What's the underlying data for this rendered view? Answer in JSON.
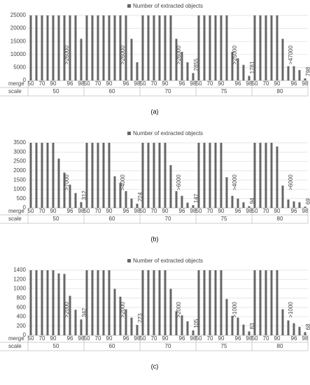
{
  "chart_data": [
    {
      "type": "bar",
      "legend": "Number of extracted objects",
      "caption": "(a)",
      "x_label": "merge",
      "group_label": "scale",
      "color": "#666666",
      "ylim": [
        0,
        25000
      ],
      "yticks": [
        0,
        5000,
        10000,
        15000,
        20000,
        25000
      ],
      "grid": true,
      "categories": [
        "50",
        null,
        "70",
        null,
        "90",
        null,
        null,
        "96",
        null,
        "98"
      ],
      "groups": [
        {
          "name": "50",
          "annotation": ">26000",
          "values": [
            25000,
            25000,
            25000,
            25000,
            25000,
            25000,
            25000,
            25000,
            25000,
            16000
          ],
          "value_labels": [
            null,
            null,
            null,
            null,
            null,
            null,
            null,
            null,
            null,
            null
          ]
        },
        {
          "name": "60",
          "annotation": ">26000",
          "values": [
            25000,
            25000,
            25000,
            25000,
            25000,
            25000,
            25000,
            25000,
            16000,
            7000
          ],
          "value_labels": [
            null,
            null,
            null,
            null,
            null,
            null,
            null,
            null,
            null,
            null
          ]
        },
        {
          "name": "70",
          "annotation": ">26000",
          "values": [
            25000,
            25000,
            25000,
            25000,
            25000,
            25000,
            16000,
            11000,
            7000,
            2855
          ],
          "value_labels": [
            null,
            null,
            null,
            null,
            null,
            null,
            null,
            null,
            null,
            "2855"
          ]
        },
        {
          "name": "75",
          "annotation": ">25000",
          "values": [
            25000,
            25000,
            25000,
            25000,
            25000,
            25000,
            11000,
            8500,
            6000,
            1781
          ],
          "value_labels": [
            null,
            null,
            null,
            null,
            null,
            null,
            null,
            null,
            null,
            "1781"
          ]
        },
        {
          "name": "80",
          "annotation": ">47000",
          "values": [
            25000,
            25000,
            25000,
            25000,
            25000,
            16000,
            5500,
            5500,
            4000,
            798
          ],
          "value_labels": [
            null,
            null,
            null,
            null,
            null,
            null,
            null,
            null,
            null,
            "798"
          ]
        }
      ]
    },
    {
      "type": "bar",
      "legend": "Number of extracted objects",
      "caption": "(b)",
      "x_label": "merge",
      "group_label": "scale",
      "color": "#666666",
      "ylim": [
        0,
        3500
      ],
      "yticks": [
        0,
        500,
        1000,
        1500,
        2000,
        2500,
        3000,
        3500
      ],
      "grid": true,
      "categories": [
        "50",
        null,
        "70",
        null,
        "90",
        null,
        null,
        "96",
        null,
        "98"
      ],
      "groups": [
        {
          "name": "50",
          "annotation": ">7000",
          "values": [
            3500,
            3500,
            3500,
            3500,
            3500,
            2650,
            1900,
            1250,
            800,
            312
          ],
          "value_labels": [
            null,
            null,
            null,
            null,
            null,
            null,
            null,
            null,
            null,
            "312"
          ]
        },
        {
          "name": "60",
          "annotation": ">4000",
          "values": [
            3500,
            3500,
            3500,
            3500,
            3500,
            1700,
            1350,
            900,
            500,
            224
          ],
          "value_labels": [
            null,
            null,
            null,
            null,
            null,
            null,
            null,
            null,
            null,
            "224"
          ]
        },
        {
          "name": "70",
          "annotation": ">6000",
          "values": [
            3500,
            3500,
            3500,
            3500,
            3500,
            2300,
            900,
            650,
            280,
            147
          ],
          "value_labels": [
            null,
            null,
            null,
            null,
            null,
            null,
            null,
            null,
            null,
            "147"
          ]
        },
        {
          "name": "75",
          "annotation": ">4000",
          "values": [
            3500,
            3500,
            3500,
            3500,
            3500,
            1650,
            650,
            500,
            300,
            94
          ],
          "value_labels": [
            null,
            null,
            null,
            null,
            null,
            null,
            null,
            null,
            null,
            "94"
          ]
        },
        {
          "name": "80",
          "annotation": ">6000",
          "values": [
            3500,
            3500,
            3500,
            3500,
            3300,
            1200,
            450,
            350,
            300,
            69
          ],
          "value_labels": [
            null,
            null,
            null,
            null,
            null,
            null,
            null,
            null,
            null,
            "69"
          ]
        }
      ]
    },
    {
      "type": "bar",
      "legend": "Number of extracted objects",
      "caption": "(c)",
      "x_label": "merge",
      "group_label": "scale",
      "color": "#666666",
      "ylim": [
        0,
        1400
      ],
      "yticks": [
        0,
        200,
        400,
        600,
        800,
        1000,
        1200,
        1400
      ],
      "grid": true,
      "categories": [
        "50",
        null,
        "70",
        null,
        "90",
        null,
        null,
        "96",
        null,
        "98"
      ],
      "groups": [
        {
          "name": "50",
          "annotation": ">2000",
          "values": [
            1400,
            1400,
            1400,
            1400,
            1400,
            1330,
            1320,
            850,
            550,
            342
          ],
          "value_labels": [
            null,
            null,
            null,
            null,
            null,
            null,
            null,
            null,
            null,
            "342"
          ]
        },
        {
          "name": "60",
          "annotation": ">2000",
          "values": [
            1400,
            1400,
            1400,
            1400,
            1400,
            1000,
            830,
            560,
            380,
            223
          ],
          "value_labels": [
            null,
            null,
            null,
            null,
            null,
            null,
            null,
            null,
            null,
            "223"
          ]
        },
        {
          "name": "70",
          "annotation": ">2000",
          "values": [
            1400,
            1400,
            1400,
            1400,
            1400,
            1000,
            520,
            430,
            300,
            105
          ],
          "value_labels": [
            null,
            null,
            null,
            null,
            null,
            null,
            null,
            null,
            null,
            "105"
          ]
        },
        {
          "name": "75",
          "annotation": ">1000",
          "values": [
            1400,
            1400,
            1400,
            1400,
            1400,
            780,
            420,
            380,
            230,
            83
          ],
          "value_labels": [
            null,
            null,
            null,
            null,
            null,
            null,
            null,
            null,
            null,
            "83"
          ]
        },
        {
          "name": "80",
          "annotation": ">1000",
          "values": [
            1400,
            1400,
            1400,
            1400,
            1400,
            560,
            320,
            260,
            180,
            68
          ],
          "value_labels": [
            null,
            null,
            null,
            null,
            null,
            null,
            null,
            null,
            null,
            "68"
          ]
        }
      ]
    }
  ]
}
